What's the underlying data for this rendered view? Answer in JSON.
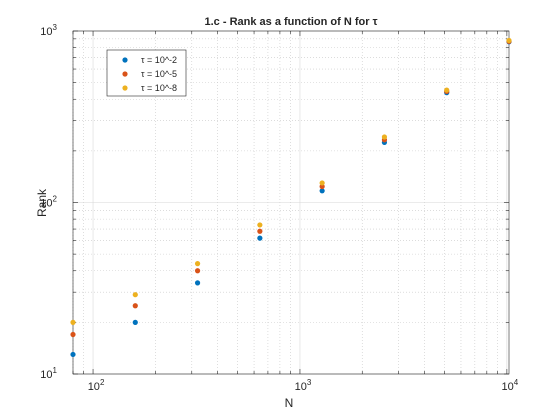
{
  "chart_data": {
    "type": "scatter",
    "title": "1.c - Rank as a function of N for τ",
    "xlabel": "N",
    "ylabel": "Rank",
    "xscale": "log",
    "yscale": "log",
    "xlim": [
      80,
      10240
    ],
    "ylim": [
      10,
      1000
    ],
    "xticks": [
      100,
      1000,
      10000
    ],
    "xtick_labels": [
      "10",
      "10",
      "10"
    ],
    "xtick_exponents": [
      "2",
      "3",
      "4"
    ],
    "yticks": [
      10,
      100,
      1000
    ],
    "ytick_labels": [
      "10",
      "10",
      "10"
    ],
    "ytick_exponents": [
      "1",
      "2",
      "3"
    ],
    "grid": true,
    "minor_grid": true,
    "legend_position": "top-left",
    "x": [
      80,
      160,
      320,
      640,
      1280,
      2560,
      5120,
      10240
    ],
    "series": [
      {
        "name": "τ = 10^-2",
        "color": "#0072BD",
        "values": [
          13,
          20,
          34,
          62,
          117,
          224,
          437,
          865
        ]
      },
      {
        "name": "τ = 10^-5",
        "color": "#D95319",
        "values": [
          17,
          25,
          40,
          68,
          124,
          232,
          444,
          870
        ]
      },
      {
        "name": "τ = 10^-8",
        "color": "#EDB120",
        "values": [
          20,
          29,
          44,
          74,
          130,
          241,
          452,
          880
        ]
      }
    ]
  }
}
